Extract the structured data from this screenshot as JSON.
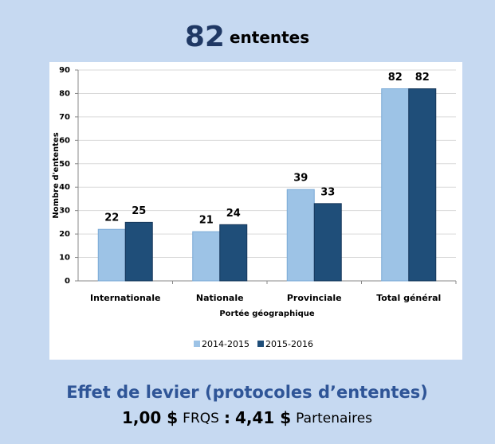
{
  "header": {
    "number": "82",
    "word": "ententes"
  },
  "chart_data": {
    "type": "bar",
    "categories": [
      "Internationale",
      "Nationale",
      "Provinciale",
      "Total général"
    ],
    "series": [
      {
        "name": "2014-2015",
        "color": "#9dc3e6",
        "values": [
          22,
          21,
          39,
          82
        ]
      },
      {
        "name": "2015-2016",
        "color": "#1f4e79",
        "values": [
          25,
          24,
          33,
          82
        ]
      }
    ],
    "ylim": [
      0,
      90
    ],
    "yticks": [
      0,
      10,
      20,
      30,
      40,
      50,
      60,
      70,
      80,
      90
    ],
    "y_label": "Nombre d'ententes",
    "x_label": "Portée géographique",
    "grid": true,
    "legend": "bottom"
  },
  "footer": {
    "title": "Effet de levier (protocoles d’ententes)",
    "ratio": [
      {
        "text": "1,00 $",
        "bold": true
      },
      {
        "text": "FRQS",
        "bold": false
      },
      {
        "text": ":",
        "bold": true
      },
      {
        "text": "4,41 $",
        "bold": true
      },
      {
        "text": "Partenaires",
        "bold": false
      }
    ]
  }
}
